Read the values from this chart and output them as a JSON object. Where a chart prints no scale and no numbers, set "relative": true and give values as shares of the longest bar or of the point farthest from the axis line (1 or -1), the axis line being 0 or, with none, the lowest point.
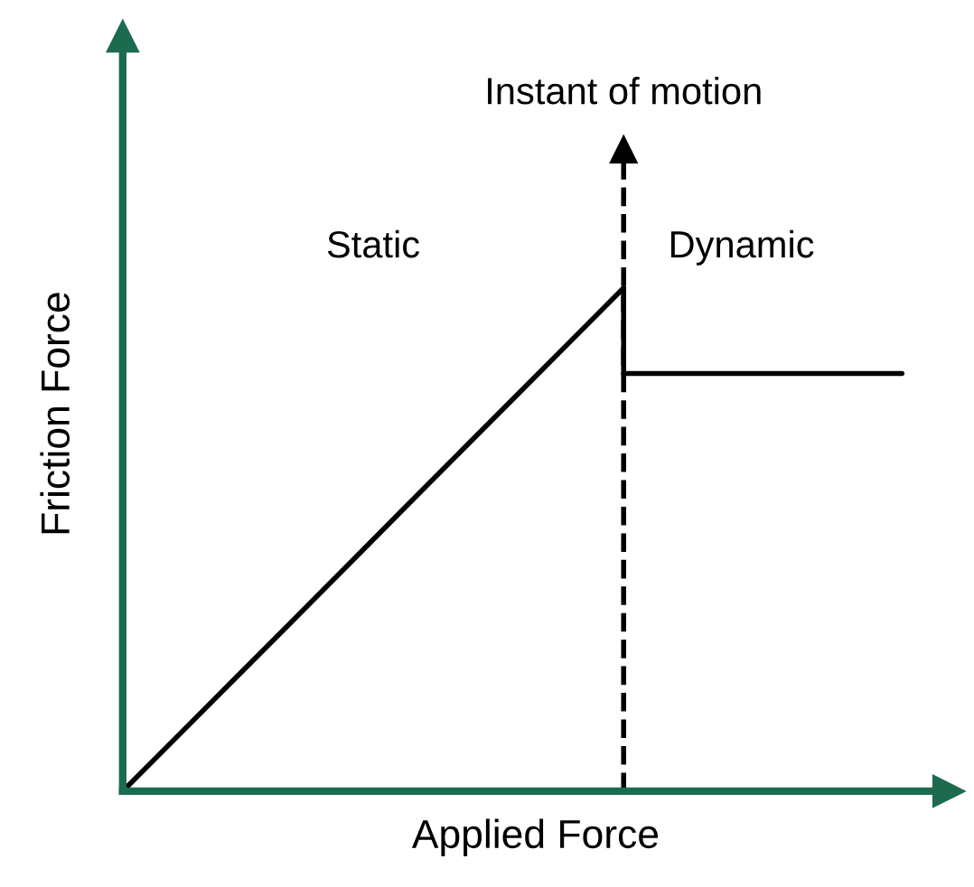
{
  "chart_data": {
    "type": "line",
    "relative": true,
    "xlabel": "Applied Force",
    "ylabel": "Friction Force",
    "categories": [
      null,
      null,
      null,
      null,
      null,
      null,
      null,
      null,
      null,
      null,
      null,
      null,
      null,
      null,
      null
    ],
    "series": [
      {
        "color": "#000000",
        "values": [
          0,
          0.111,
          0.222,
          0.333,
          0.444,
          0.556,
          0.667,
          0.778,
          0.889,
          1.0,
          null,
          null,
          null,
          null,
          null
        ]
      },
      {
        "color": "#000000",
        "values": [
          null,
          null,
          null,
          null,
          null,
          null,
          null,
          null,
          null,
          0.83,
          0.83,
          0.83,
          0.83,
          0.83,
          0.83
        ]
      }
    ],
    "annotations": [
      "Instant of motion",
      "Static",
      "Dynamic"
    ],
    "grid": false,
    "legend": false,
    "marker": "none",
    "line_style": "solid"
  }
}
